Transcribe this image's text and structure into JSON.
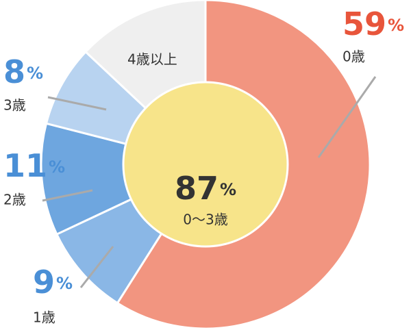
{
  "chart_data": {
    "type": "donut",
    "categories": [
      "0歳",
      "1歳",
      "2歳",
      "3歳",
      "4歳以上"
    ],
    "values": [
      59,
      9,
      11,
      8,
      13
    ],
    "colors": [
      "#f29580",
      "#8ab7e6",
      "#6ea6df",
      "#b8d3f0",
      "#efefef"
    ],
    "label_colors": [
      "#e8553b",
      "#4a8fd6",
      "#4a8fd6",
      "#4a8fd6",
      "#333333"
    ],
    "unit": "%",
    "center": {
      "value": 87,
      "label": "0〜3歳",
      "color": "#f7e48a"
    }
  }
}
